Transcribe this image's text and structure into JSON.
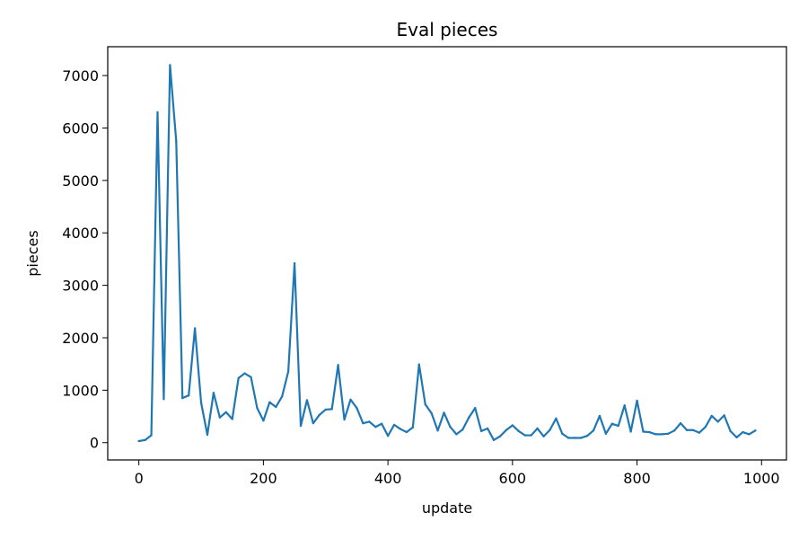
{
  "chart_data": {
    "type": "line",
    "title": "Eval pieces",
    "xlabel": "update",
    "ylabel": "pieces",
    "xlim": [
      -50,
      1040
    ],
    "ylim": [
      -330,
      7550
    ],
    "xticks": [
      0,
      200,
      400,
      600,
      800,
      1000
    ],
    "yticks": [
      0,
      1000,
      2000,
      3000,
      4000,
      5000,
      6000,
      7000
    ],
    "grid": false,
    "legend": "none",
    "series": [
      {
        "color": "#1f77b4",
        "x": [
          0,
          10,
          20,
          30,
          40,
          50,
          60,
          70,
          80,
          90,
          100,
          110,
          120,
          130,
          140,
          150,
          160,
          170,
          180,
          190,
          200,
          210,
          220,
          230,
          240,
          250,
          260,
          270,
          280,
          290,
          300,
          310,
          320,
          330,
          340,
          350,
          360,
          370,
          380,
          390,
          400,
          410,
          420,
          430,
          440,
          450,
          460,
          470,
          480,
          490,
          500,
          510,
          520,
          530,
          540,
          550,
          560,
          570,
          580,
          590,
          600,
          610,
          620,
          630,
          640,
          650,
          660,
          670,
          680,
          690,
          700,
          710,
          720,
          730,
          740,
          750,
          760,
          770,
          780,
          790,
          800,
          810,
          820,
          830,
          840,
          850,
          860,
          870,
          880,
          890,
          900,
          910,
          920,
          930,
          940,
          950,
          960,
          970,
          980,
          990
        ],
        "y": [
          30,
          50,
          140,
          6300,
          830,
          7200,
          5750,
          850,
          900,
          2180,
          760,
          150,
          950,
          480,
          580,
          450,
          1230,
          1320,
          1250,
          660,
          420,
          770,
          680,
          880,
          1360,
          3420,
          320,
          810,
          370,
          530,
          630,
          640,
          1480,
          440,
          820,
          660,
          370,
          400,
          300,
          360,
          130,
          340,
          260,
          200,
          290,
          1490,
          730,
          560,
          230,
          570,
          300,
          160,
          250,
          480,
          660,
          220,
          270,
          50,
          120,
          240,
          330,
          220,
          140,
          140,
          270,
          120,
          240,
          460,
          170,
          90,
          90,
          90,
          130,
          230,
          510,
          170,
          360,
          320,
          710,
          210,
          800,
          210,
          200,
          160,
          160,
          170,
          230,
          370,
          240,
          240,
          190,
          300,
          510,
          400,
          520,
          220,
          100,
          200,
          160,
          230
        ]
      }
    ]
  }
}
